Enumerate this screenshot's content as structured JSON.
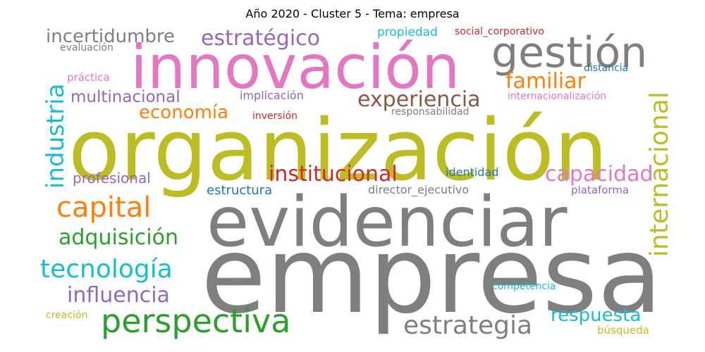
{
  "title": "Año 2020 - Cluster 5 - Tema: empresa",
  "words": {
    "empresa": "empresa",
    "organizacion": "organización",
    "evidenciar": "evidenciar",
    "innovacion": "innovación",
    "gestion": "gestión",
    "perspectiva": "perspectiva",
    "capital": "capital",
    "tecnologia": "tecnología",
    "estrategico": "estratégico",
    "experiencia": "experiencia",
    "institucional": "institucional",
    "estrategia": "estrategia",
    "internacional": "internacional",
    "industria": "industria",
    "adquisicion": "adquisición",
    "influencia": "influencia",
    "capacidad": "capacidad",
    "familiar": "familiar",
    "incertidumbre": "incertidumbre",
    "multinacional": "multinacional",
    "economia": "economía",
    "respuesta": "respuesta",
    "profesional": "profesional",
    "estructura": "estructura",
    "director_ejecutivo": "director_ejecutivo",
    "propiedad": "propiedad",
    "social_corporativo": "social_corporativo",
    "evaluacion": "evaluación",
    "practica": "práctica",
    "implicacion": "implicación",
    "distancia": "distancia",
    "internacionalizacion": "internacionalización",
    "responsabilidad": "responsabilidad",
    "inversion": "inversión",
    "identidad": "identidad",
    "plataforma": "plataforma",
    "competencia": "competencia",
    "creacion": "creación",
    "busqueda": "búsqueda"
  },
  "colors": {
    "gray": "#7f7f7f",
    "olive": "#bcbd22",
    "pink": "#e377c2",
    "orange": "#ff7f0e",
    "green": "#2ca02c",
    "cyan": "#17becf",
    "purple": "#9467bd",
    "brown": "#8c564b",
    "red": "#d62728",
    "blue": "#1f77b4"
  }
}
